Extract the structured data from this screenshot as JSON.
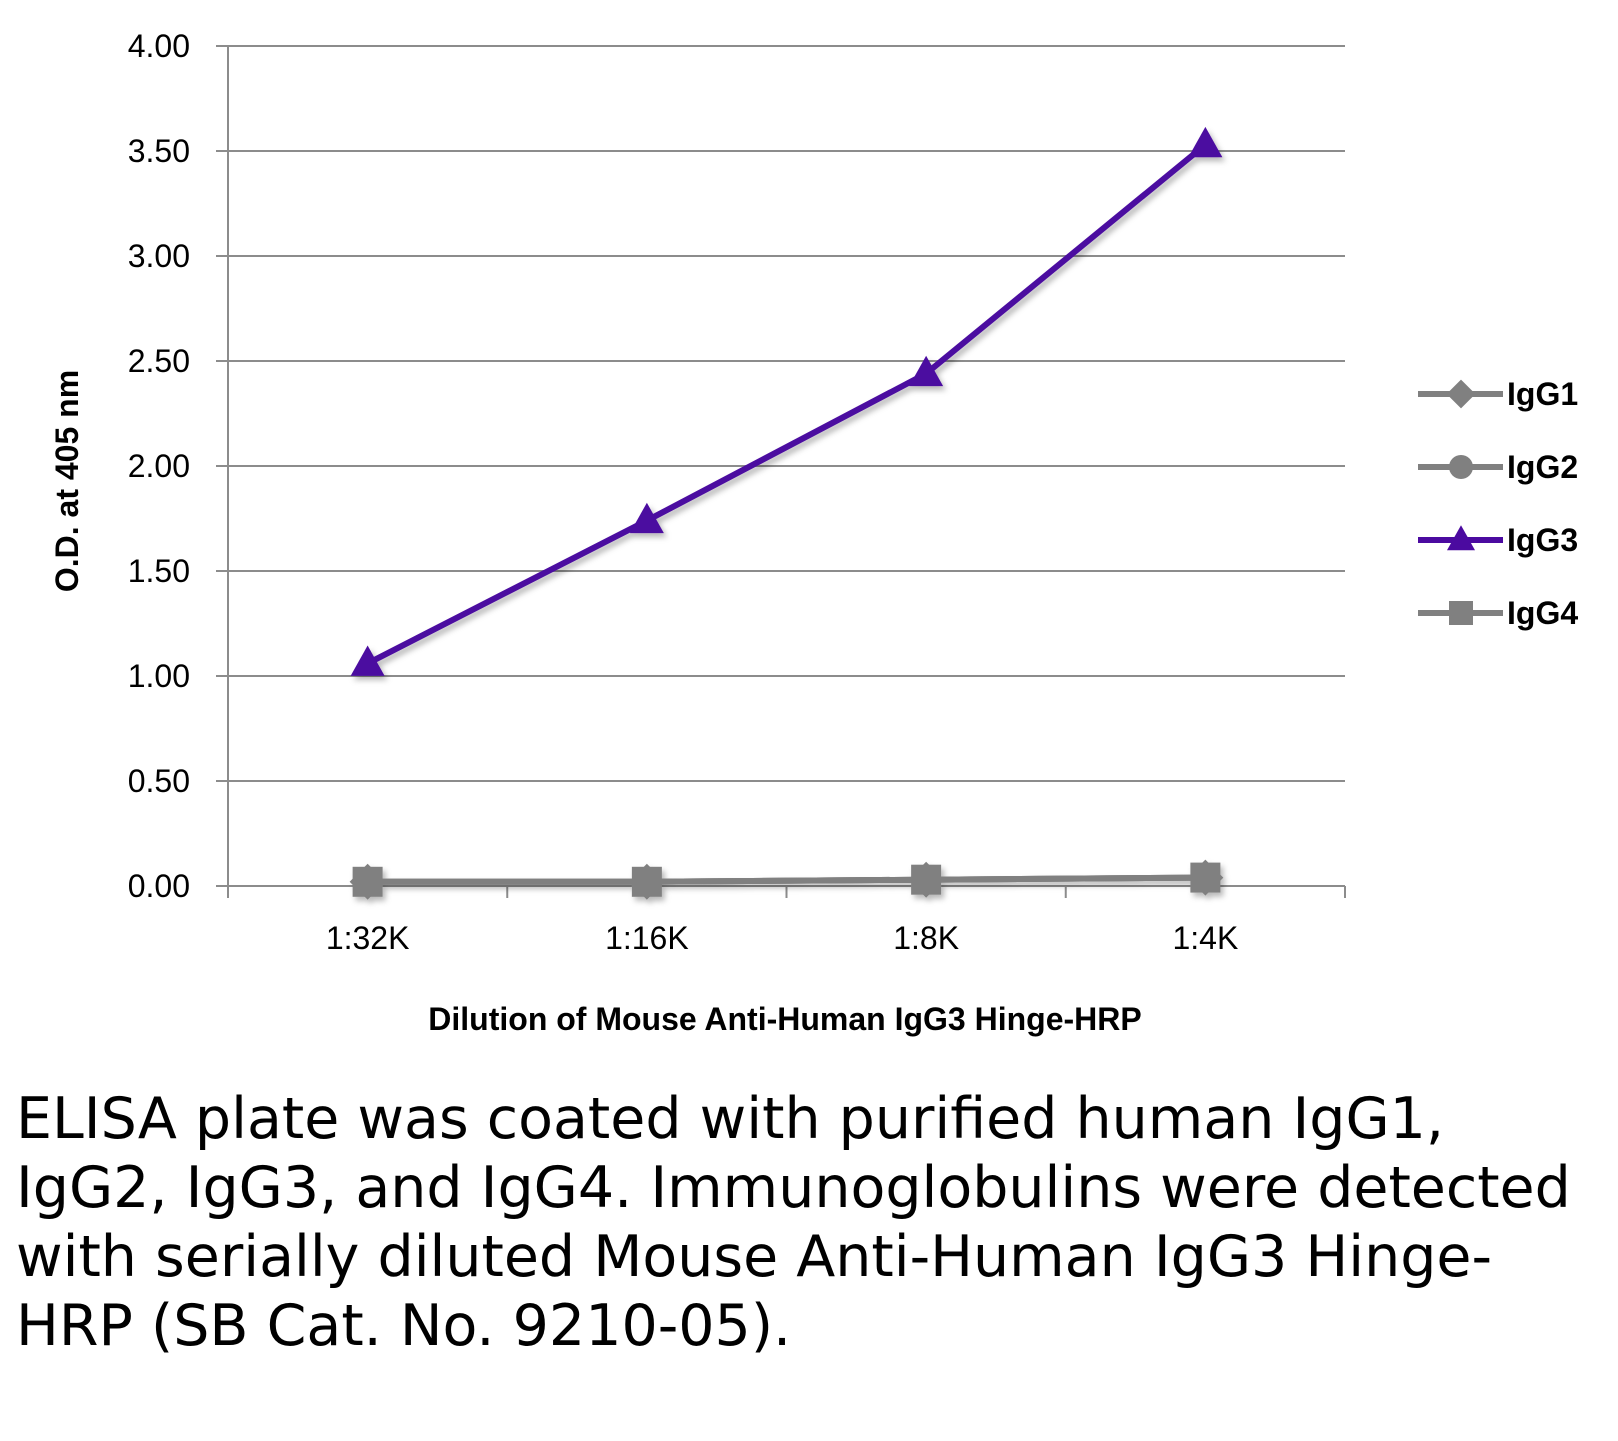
{
  "chart_data": {
    "type": "line",
    "title": "",
    "xlabel": "Dilution of Mouse Anti-Human IgG3 Hinge-HRP",
    "ylabel": "O.D. at 405 nm",
    "categories": [
      "1:32K",
      "1:16K",
      "1:8K",
      "1:4K"
    ],
    "ylim": [
      0,
      4
    ],
    "yticks": [
      "0.00",
      "0.50",
      "1.00",
      "1.50",
      "2.00",
      "2.50",
      "3.00",
      "3.50",
      "4.00"
    ],
    "grid": true,
    "legend_position": "right",
    "series": [
      {
        "name": "IgG1",
        "marker": "diamond",
        "color": "#808080",
        "values": [
          0.02,
          0.02,
          0.03,
          0.04
        ]
      },
      {
        "name": "IgG2",
        "marker": "circle",
        "color": "#808080",
        "values": [
          0.02,
          0.02,
          0.03,
          0.04
        ]
      },
      {
        "name": "IgG3",
        "marker": "triangle",
        "color": "#4b0aa0",
        "values": [
          1.06,
          1.74,
          2.44,
          3.53
        ]
      },
      {
        "name": "IgG4",
        "marker": "square",
        "color": "#808080",
        "values": [
          0.02,
          0.02,
          0.03,
          0.04
        ]
      }
    ]
  },
  "caption": "ELISA plate was coated with purified human IgG1, IgG2, IgG3, and IgG4.  Immunoglobulins were detected with serially diluted Mouse Anti-Human IgG3 Hinge-HRP (SB Cat. No. 9210-05)."
}
